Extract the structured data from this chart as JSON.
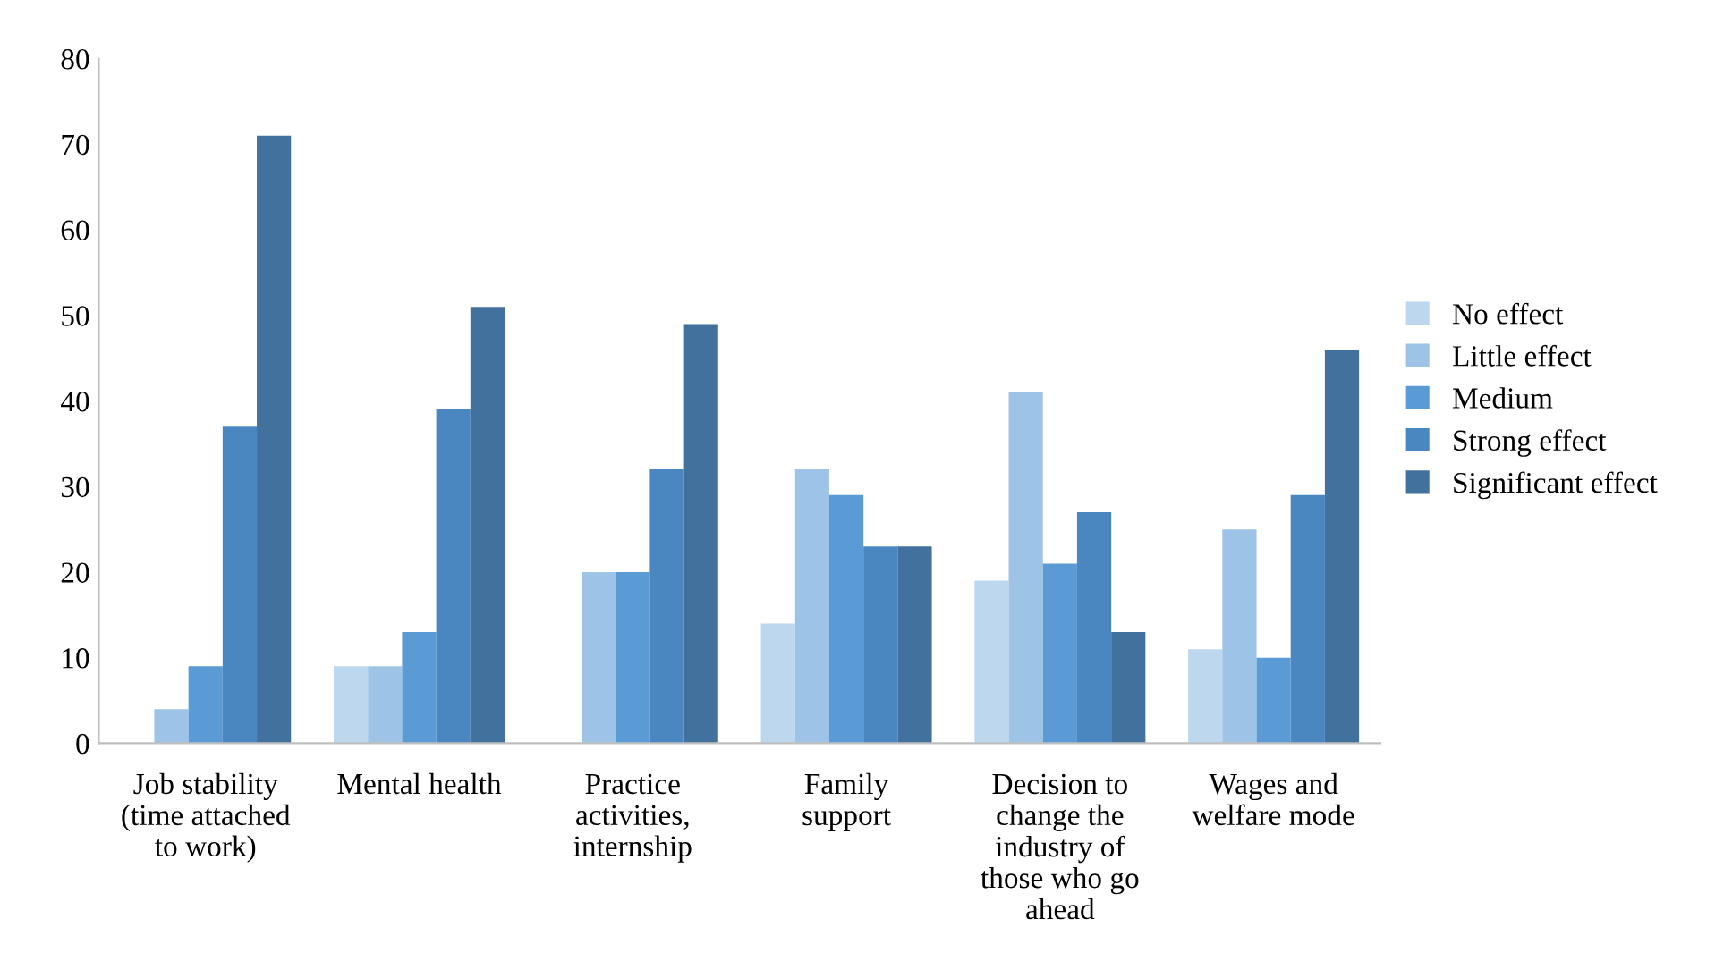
{
  "chart_data": {
    "type": "bar",
    "categories": [
      "Job stability\n(time attached\nto work)",
      "Mental health",
      "Practice\nactivities,\ninternship",
      "Family\nsupport",
      "Decision to\nchange the\nindustry of\nthose who go\nahead",
      "Wages and\nwelfare mode"
    ],
    "series": [
      {
        "name": "No effect",
        "color": "#bdd7ee",
        "values": [
          0,
          9,
          0,
          14,
          19,
          11
        ]
      },
      {
        "name": "Little effect",
        "color": "#9dc3e6",
        "values": [
          4,
          9,
          20,
          32,
          41,
          25
        ]
      },
      {
        "name": "Medium",
        "color": "#5b9bd5",
        "values": [
          9,
          13,
          20,
          29,
          21,
          10
        ]
      },
      {
        "name": "Strong effect",
        "color": "#4a87c1",
        "values": [
          37,
          39,
          32,
          23,
          27,
          29
        ]
      },
      {
        "name": "Significant effect",
        "color": "#41719c",
        "values": [
          71,
          51,
          49,
          23,
          13,
          46
        ]
      }
    ],
    "ylim": [
      0,
      80
    ],
    "yticks": [
      0,
      10,
      20,
      30,
      40,
      50,
      60,
      70,
      80
    ],
    "grid": false,
    "legend": "right"
  }
}
